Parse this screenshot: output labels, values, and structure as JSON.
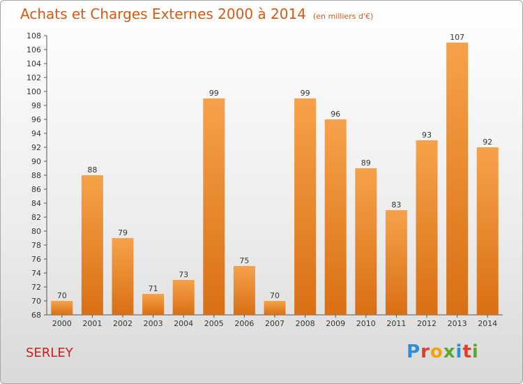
{
  "title": "Achats et Charges Externes 2000 à 2014",
  "subtitle": "(en milliers d'€)",
  "commune": "SERLEY",
  "logo": {
    "letters": [
      "P",
      "r",
      "o",
      "x",
      "i",
      "t",
      "i"
    ],
    "colors": [
      "#2a8fd6",
      "#e23c2c",
      "#f2a20f",
      "#5aa82e",
      "#2a8fd6",
      "#e23c2c",
      "#5aa82e"
    ]
  },
  "colors": {
    "bar_top": "#f6a24a",
    "bar_bottom": "#d96f14",
    "text": "#333333",
    "accent": "#d85a12"
  },
  "chart_data": {
    "type": "bar",
    "title": "Achats et Charges Externes 2000 à 2014",
    "subtitle": "(en milliers d'€)",
    "categories": [
      "2000",
      "2001",
      "2002",
      "2003",
      "2004",
      "2005",
      "2006",
      "2007",
      "2008",
      "2009",
      "2010",
      "2011",
      "2012",
      "2013",
      "2014"
    ],
    "values": [
      70,
      88,
      79,
      71,
      73,
      99,
      75,
      70,
      99,
      96,
      89,
      83,
      93,
      107,
      92
    ],
    "ylim": [
      68,
      108
    ],
    "yticks": [
      68,
      70,
      72,
      74,
      76,
      78,
      80,
      82,
      84,
      86,
      88,
      90,
      92,
      94,
      96,
      98,
      100,
      102,
      104,
      106,
      108
    ],
    "grid": false,
    "xlabel": "",
    "ylabel": ""
  }
}
